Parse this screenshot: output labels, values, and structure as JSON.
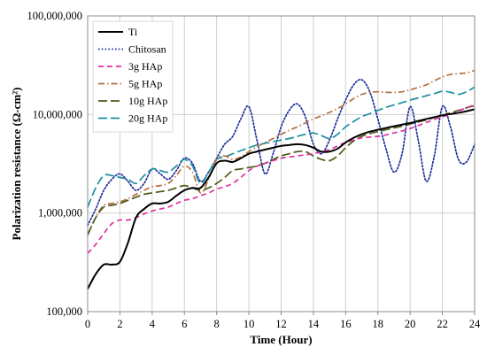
{
  "chart_data": {
    "type": "line",
    "xlabel": "Time (Hour)",
    "ylabel": "Polarization resistance (Ω-cm²)",
    "xlim": [
      0,
      24
    ],
    "ylim": [
      100000,
      100000000
    ],
    "yscale": "log",
    "x_ticks": [
      0,
      2,
      4,
      6,
      8,
      10,
      12,
      14,
      16,
      18,
      20,
      22,
      24
    ],
    "y_ticks": [
      100000,
      1000000,
      10000000,
      100000000
    ],
    "y_tick_labels": [
      "100,000",
      "1,000,000",
      "10,000,000",
      "100,000,000"
    ],
    "grid": true,
    "legend_position": "top-left",
    "series": [
      {
        "name": "Ti",
        "color": "#000000",
        "dash": "solid",
        "x": [
          0,
          0.5,
          1,
          1.5,
          2,
          2.5,
          3,
          3.5,
          4,
          4.5,
          5,
          5.5,
          6,
          6.5,
          7,
          7.5,
          8,
          8.5,
          9,
          9.5,
          10,
          10.5,
          11,
          11.5,
          12,
          12.5,
          13,
          13.5,
          14,
          14.5,
          15,
          15.5,
          16,
          16.5,
          17,
          17.5,
          18,
          18.5,
          19,
          19.5,
          20,
          20.5,
          21,
          21.5,
          22,
          22.5,
          23,
          23.5,
          24
        ],
        "values": [
          170000,
          240000,
          300000,
          300000,
          320000,
          500000,
          900000,
          1100000,
          1250000,
          1250000,
          1300000,
          1500000,
          1700000,
          1800000,
          1800000,
          2300000,
          3200000,
          3400000,
          3300000,
          3600000,
          4000000,
          4200000,
          4400000,
          4600000,
          4800000,
          4900000,
          5000000,
          4900000,
          4600000,
          4200000,
          4200000,
          4500000,
          5200000,
          5800000,
          6300000,
          6700000,
          7000000,
          7300000,
          7600000,
          7900000,
          8200000,
          8600000,
          9000000,
          9400000,
          9800000,
          10100000,
          10400000,
          10800000,
          11300000
        ]
      },
      {
        "name": "Chitosan",
        "color": "#1f2f9e",
        "dash": "dotted",
        "x": [
          0,
          0.5,
          1,
          1.5,
          2,
          2.5,
          3,
          3.5,
          4,
          4.5,
          5,
          5.5,
          6,
          6.5,
          7,
          7.5,
          8,
          8.5,
          9,
          9.5,
          10,
          10.5,
          11,
          11.5,
          12,
          12.5,
          13,
          13.5,
          14,
          14.5,
          15,
          15.5,
          16,
          16.5,
          17,
          17.5,
          18,
          18.5,
          19,
          19.5,
          20,
          20.5,
          21,
          21.5,
          22,
          22.5,
          23,
          23.5,
          24
        ],
        "values": [
          750000,
          1100000,
          1700000,
          2200000,
          2500000,
          2100000,
          1700000,
          2000000,
          2800000,
          2500000,
          2200000,
          2700000,
          3600000,
          3200000,
          2100000,
          2600000,
          3600000,
          5000000,
          6000000,
          9000000,
          12000000,
          5500000,
          2500000,
          4000000,
          7500000,
          11000000,
          12800000,
          9500000,
          5000000,
          4000000,
          5500000,
          9000000,
          14000000,
          20000000,
          22500000,
          17000000,
          9000000,
          4500000,
          2600000,
          4000000,
          12000000,
          5500000,
          2100000,
          3800000,
          12000000,
          7500000,
          3500000,
          3300000,
          5000000
        ]
      },
      {
        "name": "3g HAp",
        "color": "#e0309f",
        "dash": "dashed",
        "x": [
          0,
          0.5,
          1,
          1.5,
          2,
          2.5,
          3,
          3.5,
          4,
          4.5,
          5,
          5.5,
          6,
          6.5,
          7,
          7.5,
          8,
          8.5,
          9,
          9.5,
          10,
          10.5,
          11,
          11.5,
          12,
          12.5,
          13,
          13.5,
          14,
          14.5,
          15,
          15.5,
          16,
          16.5,
          17,
          17.5,
          18,
          18.5,
          19,
          19.5,
          20,
          20.5,
          21,
          21.5,
          22,
          22.5,
          23,
          23.5,
          24
        ],
        "values": [
          390000,
          480000,
          620000,
          780000,
          850000,
          850000,
          900000,
          980000,
          1050000,
          1100000,
          1150000,
          1250000,
          1350000,
          1400000,
          1500000,
          1600000,
          1750000,
          1850000,
          2000000,
          2300000,
          2700000,
          3000000,
          3200000,
          3400000,
          3600000,
          3700000,
          3800000,
          3900000,
          4000000,
          4200000,
          4400000,
          4800000,
          5200000,
          5500000,
          5800000,
          5900000,
          6000000,
          6200000,
          6500000,
          6800000,
          7200000,
          7700000,
          8300000,
          8900000,
          9500000,
          10000000,
          10800000,
          11700000,
          12500000
        ]
      },
      {
        "name": "5g HAp",
        "color": "#b5703f",
        "dash": "dashdot",
        "x": [
          0,
          0.5,
          1,
          1.5,
          2,
          2.5,
          3,
          3.5,
          4,
          4.5,
          5,
          5.5,
          6,
          6.5,
          7,
          7.5,
          8,
          8.5,
          9,
          9.5,
          10,
          10.5,
          11,
          11.5,
          12,
          12.5,
          13,
          13.5,
          14,
          14.5,
          15,
          15.5,
          16,
          16.5,
          17,
          17.5,
          18,
          18.5,
          19,
          19.5,
          20,
          20.5,
          21,
          21.5,
          22,
          22.5,
          23,
          23.5,
          24
        ],
        "values": [
          600000,
          900000,
          1200000,
          1250000,
          1300000,
          1400000,
          1550000,
          1700000,
          1850000,
          1900000,
          2000000,
          2400000,
          3000000,
          2600000,
          1600000,
          2200000,
          3500000,
          3800000,
          3500000,
          3700000,
          4200000,
          4700000,
          5200000,
          5700000,
          6300000,
          6900000,
          7500000,
          8200000,
          9000000,
          9700000,
          10500000,
          11500000,
          12800000,
          14500000,
          16000000,
          16800000,
          17000000,
          16800000,
          16700000,
          17000000,
          17800000,
          18800000,
          20000000,
          22000000,
          24000000,
          25500000,
          26000000,
          26500000,
          28000000
        ]
      },
      {
        "name": "10g HAp",
        "color": "#4d5a18",
        "dash": "longdash",
        "x": [
          0,
          0.5,
          1,
          1.5,
          2,
          2.5,
          3,
          3.5,
          4,
          4.5,
          5,
          5.5,
          6,
          6.5,
          7,
          7.5,
          8,
          8.5,
          9,
          9.5,
          10,
          10.5,
          11,
          11.5,
          12,
          12.5,
          13,
          13.5,
          14,
          14.5,
          15,
          15.5,
          16,
          16.5,
          17,
          17.5,
          18,
          18.5,
          19,
          19.5,
          20,
          20.5,
          21,
          21.5,
          22,
          22.5,
          23,
          23.5,
          24
        ],
        "values": [
          600000,
          900000,
          1150000,
          1200000,
          1250000,
          1350000,
          1450000,
          1550000,
          1600000,
          1650000,
          1700000,
          1800000,
          1900000,
          1800000,
          1700000,
          1800000,
          2000000,
          2300000,
          2700000,
          2800000,
          2900000,
          3000000,
          3200000,
          3500000,
          3800000,
          4000000,
          4200000,
          4200000,
          3800000,
          3500000,
          3400000,
          3800000,
          4600000,
          5400000,
          6000000,
          6400000,
          6700000,
          7000000,
          7300000,
          7600000,
          8000000,
          8400000,
          8800000,
          9300000,
          9800000,
          10400000,
          11000000,
          11700000,
          12300000
        ]
      },
      {
        "name": "20g HAp",
        "color": "#1a8fa0",
        "dash": "longdash",
        "x": [
          0,
          0.5,
          1,
          1.5,
          2,
          2.5,
          3,
          3.5,
          4,
          4.5,
          5,
          5.5,
          6,
          6.5,
          7,
          7.5,
          8,
          8.5,
          9,
          9.5,
          10,
          10.5,
          11,
          11.5,
          12,
          12.5,
          13,
          13.5,
          14,
          14.5,
          15,
          15.5,
          16,
          16.5,
          17,
          17.5,
          18,
          18.5,
          19,
          19.5,
          20,
          20.5,
          21,
          21.5,
          22,
          22.5,
          23,
          23.5,
          24
        ],
        "values": [
          1150000,
          1800000,
          2400000,
          2400000,
          2300000,
          2200000,
          2000000,
          2400000,
          2800000,
          2700000,
          2600000,
          3000000,
          3500000,
          3000000,
          2000000,
          2600000,
          3500000,
          3700000,
          4000000,
          4300000,
          4600000,
          4900000,
          5100000,
          5300000,
          5500000,
          5700000,
          6000000,
          6300000,
          6500000,
          6100000,
          5700000,
          6300000,
          7500000,
          8500000,
          9500000,
          10200000,
          11000000,
          11800000,
          12500000,
          13200000,
          14000000,
          14700000,
          15500000,
          16300000,
          17200000,
          16800000,
          16000000,
          17000000,
          19000000
        ]
      }
    ]
  }
}
